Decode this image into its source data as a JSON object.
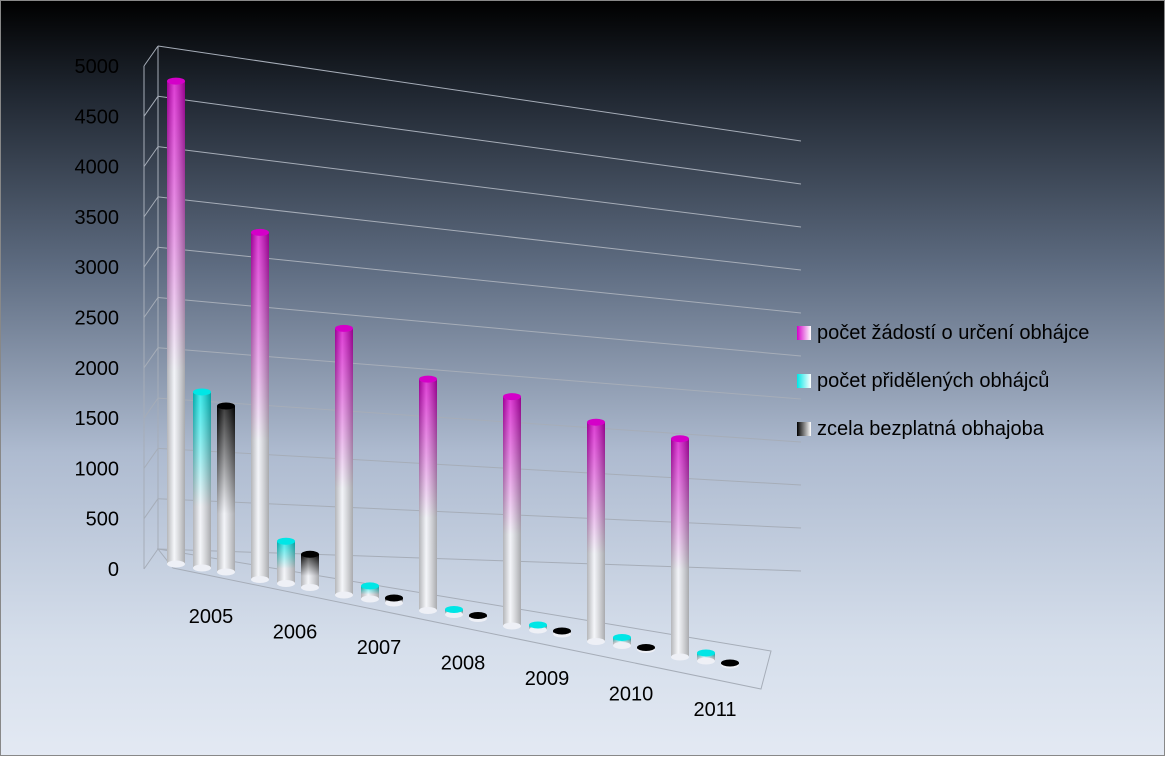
{
  "chart_data": {
    "type": "bar",
    "style": "3d-cylinder",
    "categories": [
      "2005",
      "2006",
      "2007",
      "2008",
      "2009",
      "2010",
      "2011"
    ],
    "series": [
      {
        "name": "počet žádostí o určení obhájce",
        "values": [
          4800,
          3450,
          2650,
          2300,
          2280,
          2180,
          2170
        ],
        "color": "#d400c8"
      },
      {
        "name": "počet přidělených obhájců",
        "values": [
          1750,
          420,
          130,
          50,
          50,
          80,
          80
        ],
        "color": "#00e6e6"
      },
      {
        "name": "zcela bezplatná obhajoba",
        "values": [
          1650,
          330,
          50,
          30,
          30,
          20,
          20
        ],
        "color": "#000000"
      }
    ],
    "y_ticks": [
      "0",
      "500",
      "1000",
      "1500",
      "2000",
      "2500",
      "3000",
      "3500",
      "4000",
      "4500",
      "5000"
    ],
    "ylim": [
      0,
      5000
    ],
    "grid": true,
    "legend_position": "right"
  }
}
